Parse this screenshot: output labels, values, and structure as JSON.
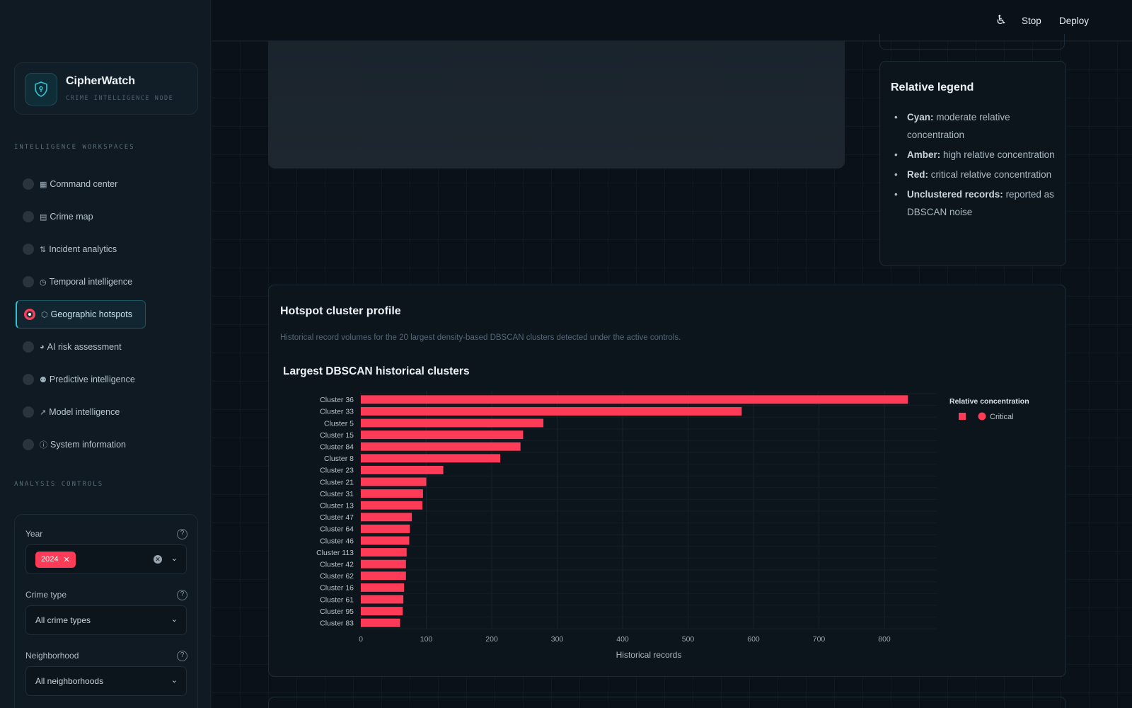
{
  "header": {
    "stop_label": "Stop",
    "deploy_label": "Deploy"
  },
  "brand": {
    "title": "CipherWatch",
    "subtitle": "CRIME INTELLIGENCE NODE"
  },
  "sidebar": {
    "workspaces_heading": "INTELLIGENCE WORKSPACES",
    "items": [
      {
        "glyph": "▦",
        "label": "Command center",
        "active": false
      },
      {
        "glyph": "▤",
        "label": "Crime map",
        "active": false
      },
      {
        "glyph": "⇅",
        "label": "Incident analytics",
        "active": false
      },
      {
        "glyph": "◷",
        "label": "Temporal intelligence",
        "active": false
      },
      {
        "glyph": "⬡",
        "label": "Geographic hotspots",
        "active": true
      },
      {
        "glyph": "◕",
        "label": "AI risk assessment",
        "active": false
      },
      {
        "glyph": "⚉",
        "label": "Predictive intelligence",
        "active": false
      },
      {
        "glyph": "↗",
        "label": "Model intelligence",
        "active": false
      },
      {
        "glyph": "ⓘ",
        "label": "System information",
        "active": false
      }
    ],
    "controls_heading": "ANALYSIS CONTROLS",
    "controls": {
      "year_label": "Year",
      "year_tag": "2024",
      "crime_type_label": "Crime type",
      "crime_type_value": "All crime types",
      "neighborhood_label": "Neighborhood",
      "neighborhood_value": "All neighborhoods"
    }
  },
  "legend": {
    "title": "Relative legend",
    "items": [
      {
        "term": "Cyan:",
        "text": "moderate relative concentration"
      },
      {
        "term": "Amber:",
        "text": "high relative concentration"
      },
      {
        "term": "Red:",
        "text": "critical relative concentration"
      },
      {
        "term": "Unclustered records:",
        "text": "reported as DBSCAN noise"
      }
    ]
  },
  "cluster_card": {
    "title": "Hotspot cluster profile",
    "description": "Historical record volumes for the 20 largest density-based DBSCAN clusters detected under the active controls."
  },
  "colors": {
    "critical": "#ff3b57",
    "accent": "#2ec4d4"
  },
  "chart_data": {
    "type": "bar",
    "orientation": "horizontal",
    "title": "Largest DBSCAN historical clusters",
    "xlabel": "Historical records",
    "ylabel": "",
    "xlim": [
      0,
      880
    ],
    "x_ticks": [
      0,
      100,
      200,
      300,
      400,
      500,
      600,
      700,
      800
    ],
    "grid": true,
    "legend_title": "Relative concentration",
    "legend_position": "top-right",
    "categories": [
      "Cluster 36",
      "Cluster 33",
      "Cluster 5",
      "Cluster 15",
      "Cluster 84",
      "Cluster 8",
      "Cluster 23",
      "Cluster 21",
      "Cluster 31",
      "Cluster 13",
      "Cluster 47",
      "Cluster 64",
      "Cluster 46",
      "Cluster 113",
      "Cluster 42",
      "Cluster 62",
      "Cluster 16",
      "Cluster 61",
      "Cluster 95",
      "Cluster 83"
    ],
    "series": [
      {
        "name": "Critical",
        "color": "#ff3b57",
        "values": [
          836,
          582,
          279,
          248,
          244,
          213,
          126,
          100,
          95,
          94,
          78,
          75,
          74,
          70,
          69,
          69,
          66,
          65,
          64,
          60
        ]
      }
    ]
  }
}
